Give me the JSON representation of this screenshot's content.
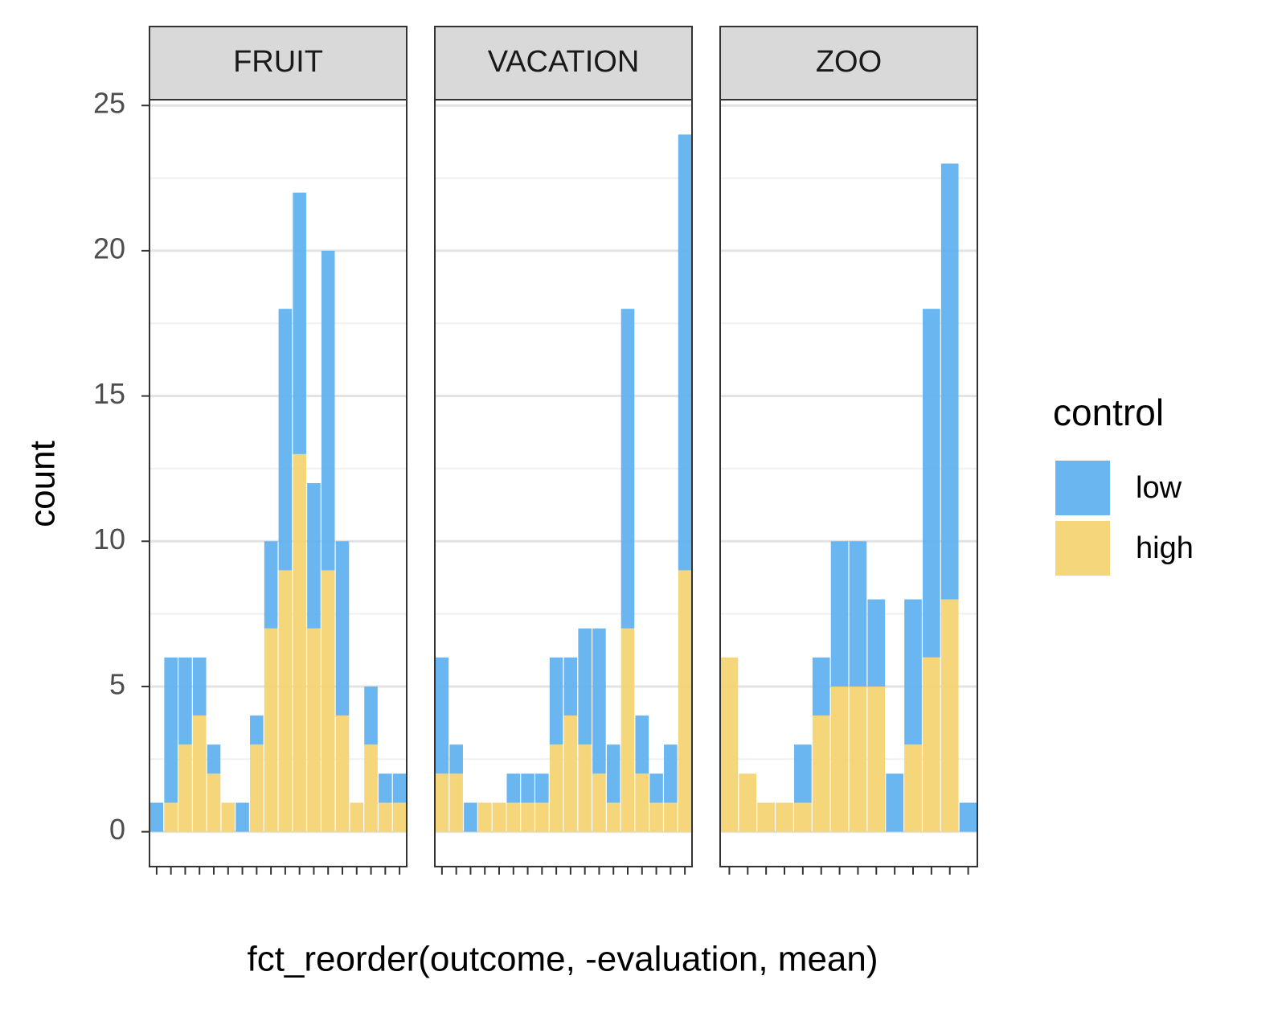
{
  "chart_data": {
    "type": "bar",
    "stacked": true,
    "x_label": "fct_reorder(outcome, -evaluation, mean)",
    "y_label": "count",
    "ylim": [
      -1.2,
      25.2
    ],
    "yticks": [
      0,
      5,
      10,
      15,
      20,
      25
    ],
    "grid": true,
    "legend": {
      "title": "control",
      "position": "right"
    },
    "series": [
      {
        "name": "low",
        "color": "#5aaef0"
      },
      {
        "name": "high",
        "color": "#f5d16b"
      }
    ],
    "facets": [
      {
        "title": "FRUIT",
        "categories": [
          null,
          null,
          null,
          null,
          null,
          null,
          null,
          null,
          null,
          null,
          null,
          null,
          null,
          null,
          null,
          null,
          null,
          null
        ],
        "series": [
          {
            "values": [
              1,
              5,
              3,
              2,
              1,
              0,
              1,
              1,
              3,
              9,
              9,
              5,
              11,
              6,
              0,
              2,
              1,
              1
            ]
          },
          {
            "values": [
              0,
              1,
              3,
              4,
              2,
              1,
              0,
              3,
              7,
              9,
              13,
              7,
              9,
              4,
              1,
              3,
              1,
              1
            ]
          }
        ]
      },
      {
        "title": "VACATION",
        "categories": [
          null,
          null,
          null,
          null,
          null,
          null,
          null,
          null,
          null,
          null,
          null,
          null,
          null,
          null,
          null,
          null,
          null,
          null
        ],
        "series": [
          {
            "values": [
              4,
              1,
              1,
              0,
              0,
              1,
              1,
              1,
              3,
              2,
              4,
              5,
              2,
              11,
              2,
              1,
              2,
              15
            ]
          },
          {
            "values": [
              2,
              2,
              0,
              1,
              1,
              1,
              1,
              1,
              3,
              4,
              3,
              2,
              1,
              7,
              2,
              1,
              1,
              9
            ]
          }
        ]
      },
      {
        "title": "ZOO",
        "categories": [
          null,
          null,
          null,
          null,
          null,
          null,
          null,
          null,
          null,
          null,
          null,
          null,
          null,
          null
        ],
        "series": [
          {
            "values": [
              0,
              0,
              0,
              0,
              2,
              2,
              5,
              5,
              3,
              2,
              5,
              12,
              15,
              1
            ]
          },
          {
            "values": [
              6,
              2,
              1,
              1,
              1,
              4,
              5,
              5,
              5,
              0,
              3,
              6,
              8,
              0
            ]
          }
        ]
      }
    ]
  }
}
